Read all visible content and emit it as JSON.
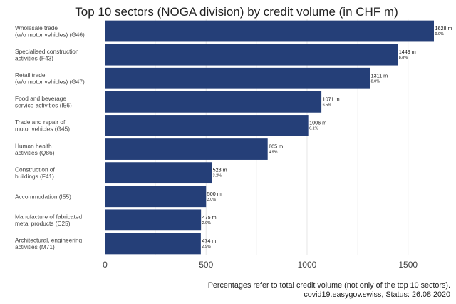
{
  "chart_data": {
    "type": "bar",
    "orientation": "horizontal",
    "title": "Top 10 sectors (NOGA division) by credit volume (in CHF m)",
    "categories": [
      [
        "Wholesale trade",
        "(w/o motor vehicles) (G46)"
      ],
      [
        "Specialised construction",
        "activities (F43)"
      ],
      [
        "Retail trade",
        "(w/o motor vehicles) (G47)"
      ],
      [
        "Food and beverage",
        "service activities (I56)"
      ],
      [
        "Trade and repair of",
        "motor vehicles (G45)"
      ],
      [
        "Human health",
        "activities (Q86)"
      ],
      [
        "Construction of",
        "buildings (F41)"
      ],
      [
        "Accommodation (I55)"
      ],
      [
        "Manufacture of fabricated",
        "metal products (C25)"
      ],
      [
        "Architectural, engineering",
        "activities (M71)"
      ]
    ],
    "values": [
      1628,
      1449,
      1311,
      1071,
      1006,
      805,
      528,
      500,
      475,
      474
    ],
    "value_labels": [
      "1628 m",
      "1449 m",
      "1311 m",
      "1071 m",
      "1006 m",
      "805 m",
      "528 m",
      "500 m",
      "475 m",
      "474 m"
    ],
    "percent_labels": [
      "9.9%",
      "8.8%",
      "8.0%",
      "6.5%",
      "6.1%",
      "4.9%",
      "3.2%",
      "3.0%",
      "2.9%",
      "2.9%"
    ],
    "xlim": [
      0,
      1680
    ],
    "xticks": [
      0,
      500,
      1000,
      1500
    ],
    "grid": true,
    "bar_color": "#253f78",
    "footnote": [
      "Percentages refer to total credit volume (not only of the top 10 sectors).",
      "covid19.easygov.swiss, Status: 26.08.2020"
    ]
  }
}
